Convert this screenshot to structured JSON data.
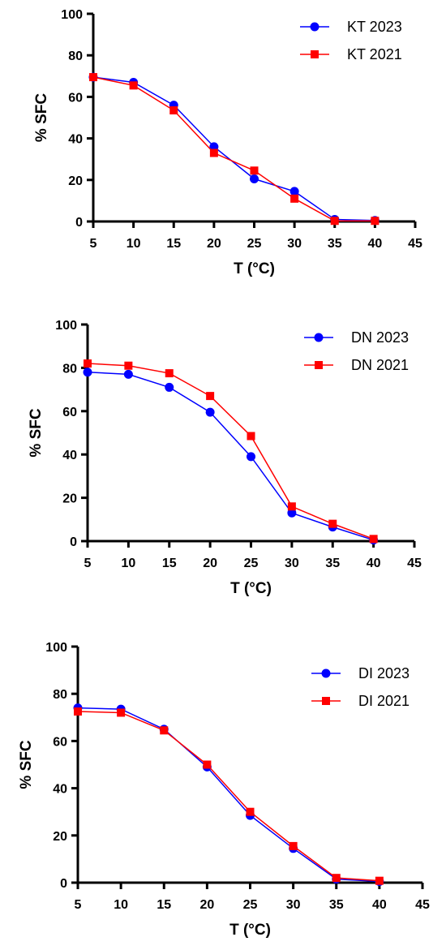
{
  "chart_data": [
    {
      "type": "line",
      "xlabel": "T (°C)",
      "ylabel": "% SFC",
      "xlim": [
        5,
        45
      ],
      "ylim": [
        0,
        100
      ],
      "xticks": [
        5,
        10,
        15,
        20,
        25,
        30,
        35,
        40,
        45
      ],
      "yticks": [
        0,
        20,
        40,
        60,
        80,
        100
      ],
      "grid": false,
      "legend_position": "top-right",
      "x": [
        5,
        10,
        15,
        20,
        25,
        30,
        35,
        40
      ],
      "series": [
        {
          "name": "KT 2023",
          "color": "#0000ff",
          "marker": "circle",
          "values": [
            69.5,
            67,
            56,
            36,
            20.5,
            14.5,
            1,
            0.5
          ]
        },
        {
          "name": "KT 2021",
          "color": "#ff0000",
          "marker": "square",
          "values": [
            69.5,
            65.5,
            53.5,
            33,
            24.5,
            11,
            0.3,
            0.3
          ]
        }
      ]
    },
    {
      "type": "line",
      "xlabel": "T (°C)",
      "ylabel": "% SFC",
      "xlim": [
        5,
        45
      ],
      "ylim": [
        0,
        100
      ],
      "xticks": [
        5,
        10,
        15,
        20,
        25,
        30,
        35,
        40,
        45
      ],
      "yticks": [
        0,
        20,
        40,
        60,
        80,
        100
      ],
      "grid": false,
      "legend_position": "top-right",
      "x": [
        5,
        10,
        15,
        20,
        25,
        30,
        35,
        40
      ],
      "series": [
        {
          "name": "DN 2023",
          "color": "#0000ff",
          "marker": "circle",
          "values": [
            78,
            77,
            71,
            59.5,
            39,
            13,
            6.5,
            0.5
          ]
        },
        {
          "name": "DN 2021",
          "color": "#ff0000",
          "marker": "square",
          "values": [
            82,
            81,
            77.5,
            67,
            48.5,
            16,
            8,
            1
          ]
        }
      ]
    },
    {
      "type": "line",
      "xlabel": "T (°C)",
      "ylabel": "% SFC",
      "xlim": [
        5,
        45
      ],
      "ylim": [
        0,
        100
      ],
      "xticks": [
        5,
        10,
        15,
        20,
        25,
        30,
        35,
        40,
        45
      ],
      "yticks": [
        0,
        20,
        40,
        60,
        80,
        100
      ],
      "grid": false,
      "legend_position": "top-right",
      "x": [
        5,
        10,
        15,
        20,
        25,
        30,
        35,
        40
      ],
      "series": [
        {
          "name": "DI 2023",
          "color": "#0000ff",
          "marker": "circle",
          "values": [
            74,
            73.5,
            65,
            49,
            28.5,
            14.5,
            1.5,
            0.5
          ]
        },
        {
          "name": "DI 2021",
          "color": "#ff0000",
          "marker": "square",
          "values": [
            72.5,
            72,
            64.5,
            50,
            30,
            15.5,
            2,
            0.8
          ]
        }
      ]
    }
  ]
}
